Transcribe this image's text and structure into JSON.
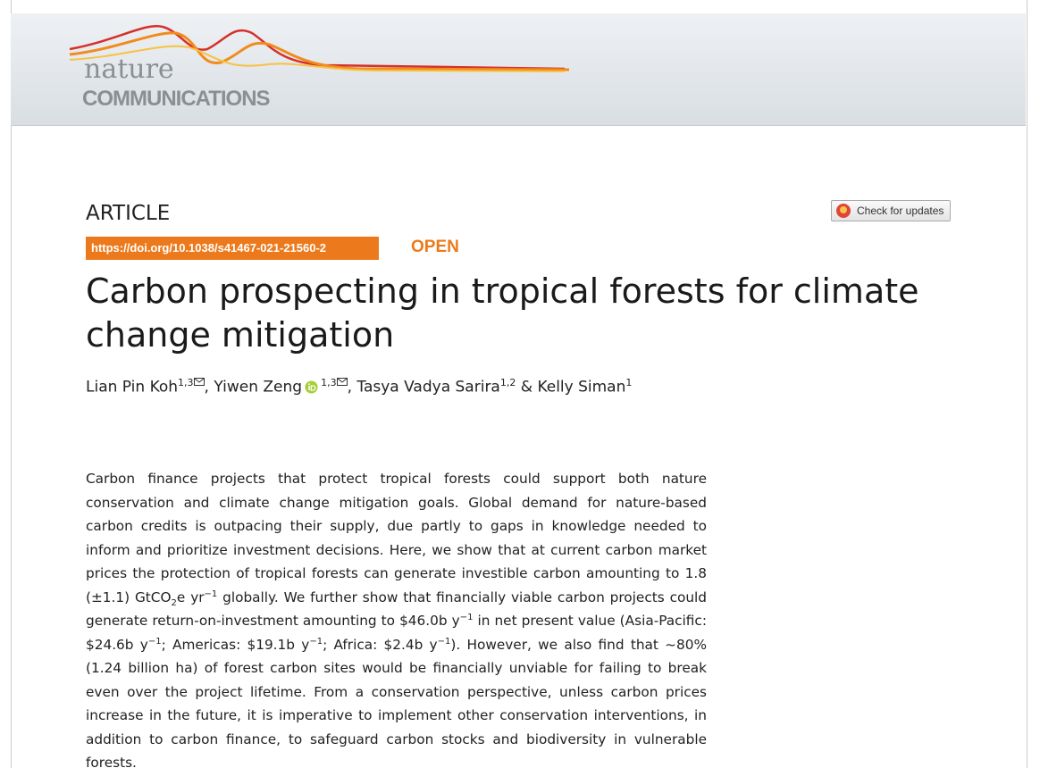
{
  "header": {
    "logo_top": "nature",
    "logo_bottom": "COMMUNICATIONS"
  },
  "article_type": "ARTICLE",
  "check_updates": "Check for updates",
  "doi": "https://doi.org/10.1038/s41467-021-21560-2",
  "access": "OPEN",
  "title": "Carbon prospecting in tropical forests for climate change mitigation",
  "authors": [
    {
      "name": "Lian Pin Koh",
      "affiliations": "1,3",
      "corresponding": true,
      "sep": ", "
    },
    {
      "name": "Yiwen Zeng",
      "affiliations": "1,3",
      "corresponding": true,
      "orcid": true,
      "sep": ", "
    },
    {
      "name": "Tasya Vadya Sarira",
      "affiliations": "1,2",
      "sep": " & "
    },
    {
      "name": "Kelly Siman",
      "affiliations": "1"
    }
  ],
  "abstract": [
    {
      "text": "Carbon finance projects that protect tropical forests could support both nature conservation and climate change mitigation goals. Global demand for nature-based carbon credits is outpacing their supply, due partly to gaps in knowledge needed to inform and prioritize investment decisions. Here, we show that at current carbon market prices the protection of tropical forests can generate investible carbon amounting to 1.8 (±1.1) GtCO"
    },
    {
      "sub": "2"
    },
    {
      "text": "e yr"
    },
    {
      "sup": "−1"
    },
    {
      "text": " globally. We further show that financially viable carbon projects could generate return-on-investment amounting to $46.0b y"
    },
    {
      "sup": "−1"
    },
    {
      "text": " in net present value (Asia-Pacific: $24.6b y"
    },
    {
      "sup": "−1"
    },
    {
      "text": "; Americas: $19.1b y"
    },
    {
      "sup": "−1"
    },
    {
      "text": "; Africa: $2.4b y"
    },
    {
      "sup": "−1"
    },
    {
      "text": "). However, we also find that ~80% (1.24 billion ha) of forest carbon sites would be financially unviable for failing to break even over the project lifetime. From a conservation perspective, unless carbon prices increase in the future, it is imperative to implement other conservation interventions, in addition to carbon finance, to safeguard carbon stocks and biodiversity in vulnerable forests."
    }
  ]
}
